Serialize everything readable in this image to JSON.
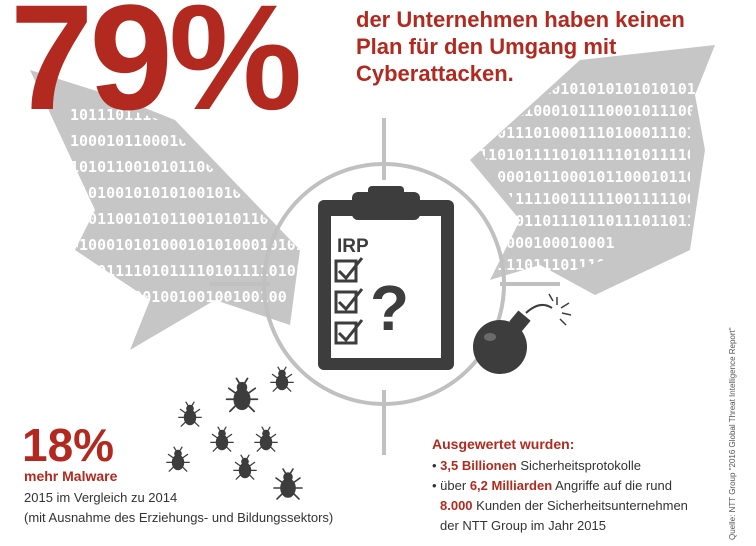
{
  "stat_main": {
    "value": "79%",
    "text": "der Unternehmen haben keinen Plan für den Umgang mit Cyberattacken."
  },
  "binary": {
    "left": [
      "1011",
      "1000101",
      "10101100",
      "010100101",
      "01011001",
      "01000101",
      "1010111",
      "100100"
    ],
    "right": [
      "110",
      "10101010",
      "00101110",
      "10001110",
      "1110101",
      "0110001",
      "1100111",
      "1011101",
      "0001",
      "1101"
    ]
  },
  "clipboard": {
    "label": "IRP",
    "symbol": "?"
  },
  "stat_malware": {
    "value": "18%",
    "label": "mehr Malware",
    "line1": "2015 im Vergleich zu 2014",
    "line2": "(mit Ausnahme des Erziehungs- und Bildungssektors)"
  },
  "evaluated": {
    "title": "Ausgewertet wurden:",
    "item1_bold": "3,5 Billionen",
    "item1_rest": " Sicherheitsprotokolle",
    "item2_pre": "über ",
    "item2_bold": "6,2 Milliarden",
    "item2_rest": " Angriffe auf die rund",
    "item3_bold": "8.000",
    "item3_rest": " Kunden der Sicherheitsunternehmen",
    "item4": "der NTT Group im Jahr 2015"
  },
  "source": "Quelle: NTT Group \"2016 Global Threat Intelligence Report\"",
  "colors": {
    "accent": "#b22a1f",
    "gray_shape": "#c6c6c6",
    "dark": "#3d3d3d"
  },
  "icons": [
    "clipboard-icon",
    "checkbox-icon",
    "crosshair-icon",
    "bomb-icon",
    "bug-icon"
  ]
}
